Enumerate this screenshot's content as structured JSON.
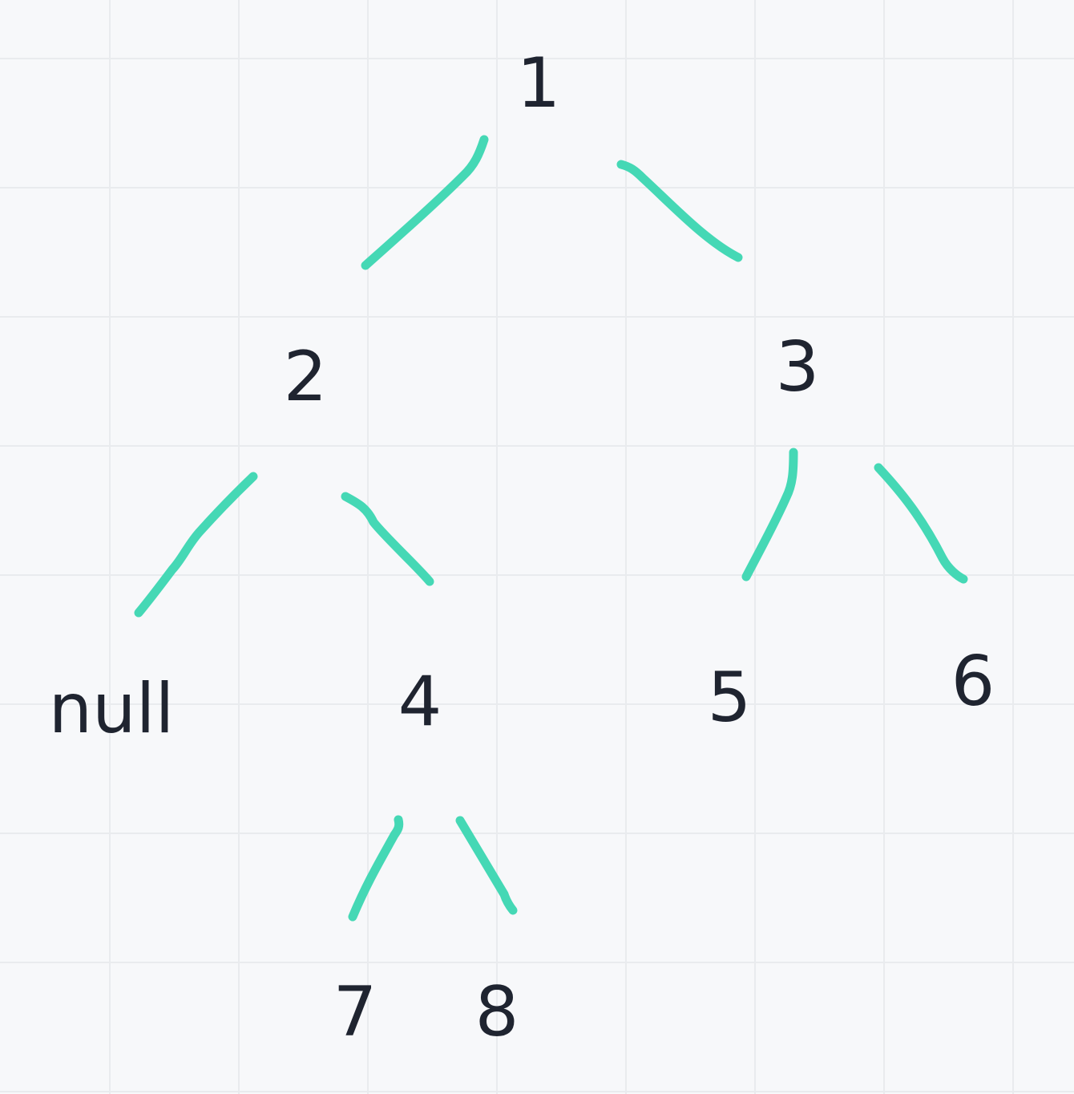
{
  "tree": {
    "nodes": [
      {
        "id": "n1",
        "label": "1"
      },
      {
        "id": "n2",
        "label": "2"
      },
      {
        "id": "n3",
        "label": "3"
      },
      {
        "id": "n-null",
        "label": "null"
      },
      {
        "id": "n4",
        "label": "4"
      },
      {
        "id": "n5",
        "label": "5"
      },
      {
        "id": "n6",
        "label": "6"
      },
      {
        "id": "n7",
        "label": "7"
      },
      {
        "id": "n8",
        "label": "8"
      }
    ],
    "edges": [
      {
        "from": "1",
        "to": "2"
      },
      {
        "from": "1",
        "to": "3"
      },
      {
        "from": "2",
        "to": "null"
      },
      {
        "from": "2",
        "to": "4"
      },
      {
        "from": "3",
        "to": "5"
      },
      {
        "from": "3",
        "to": "6"
      },
      {
        "from": "4",
        "to": "7"
      },
      {
        "from": "4",
        "to": "8"
      }
    ],
    "colors": {
      "edge": "#45d8b5",
      "text": "#1f2430",
      "background": "#f7f8fa",
      "grid": "#e9ebee"
    }
  }
}
